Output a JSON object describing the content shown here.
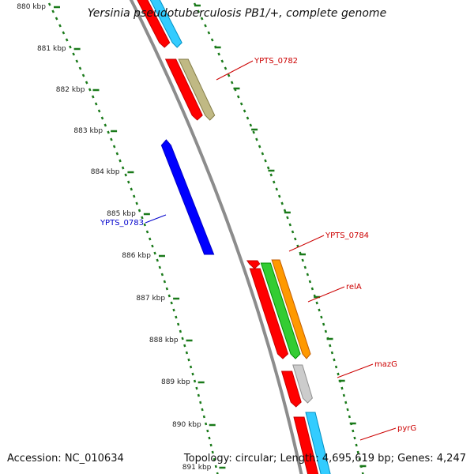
{
  "title": "Yersinia pseudotuberculosis PB1/+, complete genome",
  "footer": {
    "accession": "Accession: NC_010634",
    "summary": "Topology: circular; Length: 4,695,619 bp; Genes: 4,247"
  },
  "colors": {
    "backbone": "#8c8c8c",
    "tick": "#1a7a1a",
    "minus_label": "#0000cc",
    "plus_label": "#cc0000"
  },
  "ruler_labels": [
    "880 kbp",
    "881 kbp",
    "882 kbp",
    "883 kbp",
    "884 kbp",
    "885 kbp",
    "886 kbp",
    "887 kbp",
    "888 kbp",
    "889 kbp",
    "890 kbp",
    "891 kbp"
  ],
  "genes": [
    {
      "name": "",
      "track": "outer",
      "color": "#ff0000",
      "start": -30,
      "end": 58
    },
    {
      "name": "",
      "track": "middle",
      "color": "#33ccff",
      "start": -30,
      "end": 58
    },
    {
      "name": "",
      "track": "outer",
      "color": "#ff0000",
      "start": 75,
      "end": 150
    },
    {
      "name": "YPTS_0782",
      "track": "middle",
      "color": "#c0b984",
      "start": 75,
      "end": 150
    },
    {
      "name": "YPTS_0783",
      "track": "inner",
      "color": "#0000ff",
      "start": 180,
      "end": 322
    },
    {
      "name": "",
      "track": "outer",
      "color": "#ff0000",
      "start": 330,
      "end": 338
    },
    {
      "name": "",
      "track": "outer",
      "color": "#ff0000",
      "start": 340,
      "end": 452
    },
    {
      "name": "YPTS_0784",
      "track": "middle",
      "color": "#33cc33",
      "start": 333,
      "end": 452
    },
    {
      "name": "relA",
      "track": "far",
      "color": "#ff9900",
      "start": 329,
      "end": 452
    },
    {
      "name": "",
      "track": "outer",
      "color": "#ff0000",
      "start": 470,
      "end": 513
    },
    {
      "name": "mazG",
      "track": "middle",
      "color": "#cccccc",
      "start": 462,
      "end": 508
    },
    {
      "name": "pyrG",
      "track": "middle",
      "color": "#33ccff",
      "start": 522,
      "end": 610
    },
    {
      "name": "",
      "track": "outer",
      "color": "#ff0000",
      "start": 528,
      "end": 610
    }
  ]
}
